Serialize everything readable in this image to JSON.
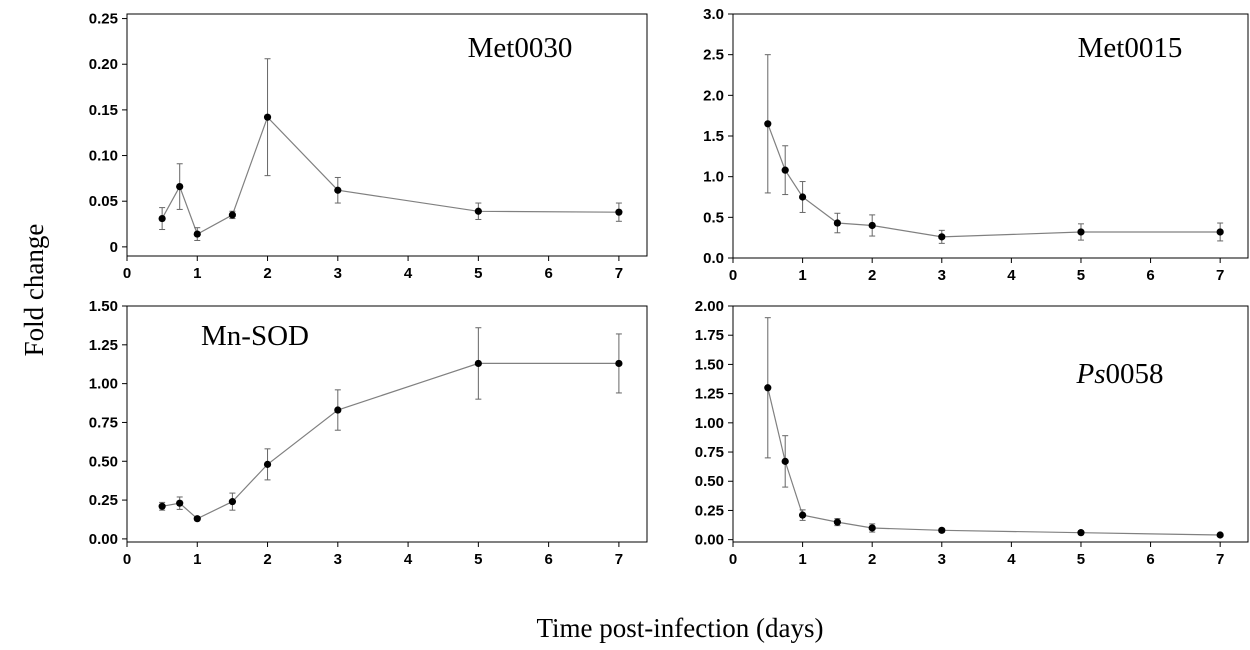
{
  "figure": {
    "ylabel": "Fold change",
    "xlabel": "Time post-infection (days)"
  },
  "chart_data": [
    {
      "type": "line",
      "title": "Met0030",
      "xlim": [
        0,
        7.4
      ],
      "ylim": [
        -0.01,
        0.255
      ],
      "xticks": [
        0,
        1,
        2,
        3,
        4,
        5,
        6,
        7
      ],
      "yticks": [
        "0",
        "0.05",
        "0.10",
        "0.15",
        "0.20",
        "0.25"
      ],
      "series": [
        {
          "x": [
            0.5,
            0.75,
            1,
            1.5,
            2,
            3,
            5,
            7
          ],
          "y": [
            0.031,
            0.066,
            0.014,
            0.035,
            0.142,
            0.062,
            0.039,
            0.038
          ],
          "err": [
            0.012,
            0.025,
            0.007,
            0.004,
            0.064,
            0.014,
            0.009,
            0.01
          ]
        }
      ]
    },
    {
      "type": "line",
      "title": "Met0015",
      "xlim": [
        0,
        7.4
      ],
      "ylim": [
        0,
        3.0
      ],
      "xticks": [
        0,
        1,
        2,
        3,
        4,
        5,
        6,
        7
      ],
      "yticks": [
        "0.0",
        "0.5",
        "1.0",
        "1.5",
        "2.0",
        "2.5",
        "3.0"
      ],
      "series": [
        {
          "x": [
            0.5,
            0.75,
            1,
            1.5,
            2,
            3,
            5,
            7
          ],
          "y": [
            1.65,
            1.08,
            0.75,
            0.43,
            0.4,
            0.26,
            0.32,
            0.32
          ],
          "err": [
            0.85,
            0.3,
            0.19,
            0.12,
            0.13,
            0.08,
            0.1,
            0.11
          ]
        }
      ]
    },
    {
      "type": "line",
      "title": "Mn-SOD",
      "xlim": [
        0,
        7.4
      ],
      "ylim": [
        -0.02,
        1.5
      ],
      "xticks": [
        0,
        1,
        2,
        3,
        4,
        5,
        6,
        7
      ],
      "yticks": [
        "0.00",
        "0.25",
        "0.50",
        "0.75",
        "1.00",
        "1.25",
        "1.50"
      ],
      "series": [
        {
          "x": [
            0.5,
            0.75,
            1,
            1.5,
            2,
            3,
            5,
            7
          ],
          "y": [
            0.21,
            0.23,
            0.13,
            0.24,
            0.48,
            0.83,
            1.13,
            1.13
          ],
          "err": [
            0.025,
            0.04,
            0.01,
            0.055,
            0.1,
            0.13,
            0.23,
            0.19
          ]
        }
      ]
    },
    {
      "type": "line",
      "title_italic": "Ps",
      "title": "0058",
      "xlim": [
        0,
        7.4
      ],
      "ylim": [
        -0.02,
        2.0
      ],
      "xticks": [
        0,
        1,
        2,
        3,
        4,
        5,
        6,
        7
      ],
      "yticks": [
        "0.00",
        "0.25",
        "0.50",
        "0.75",
        "1.00",
        "1.25",
        "1.50",
        "1.75",
        "2.00"
      ],
      "series": [
        {
          "x": [
            0.5,
            0.75,
            1,
            1.5,
            2,
            3,
            5,
            7
          ],
          "y": [
            1.3,
            0.67,
            0.21,
            0.15,
            0.1,
            0.08,
            0.06,
            0.04
          ],
          "err": [
            0.6,
            0.22,
            0.045,
            0.03,
            0.035,
            0.015,
            0.015,
            0.01
          ]
        }
      ]
    }
  ]
}
